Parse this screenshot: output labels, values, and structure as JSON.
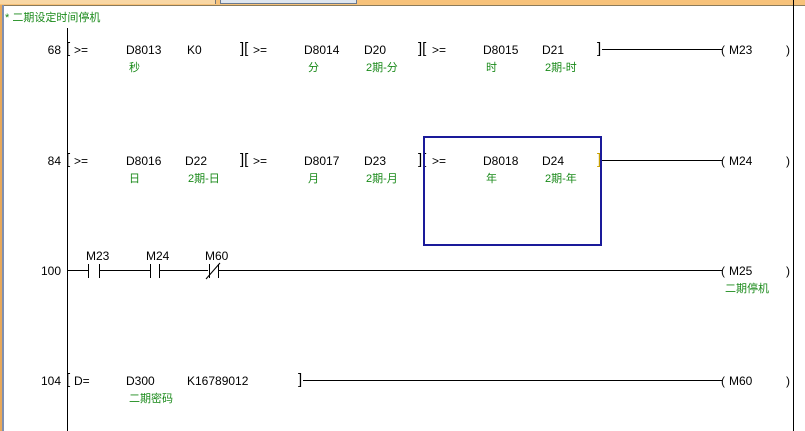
{
  "statement_comment": "* 二期设定时间停机",
  "rungs": [
    {
      "step": "68",
      "compares": [
        {
          "op": ">=",
          "s1": "D8013",
          "s1_comment": "秒",
          "s2": "K0",
          "s2_comment": ""
        },
        {
          "op": ">=",
          "s1": "D8014",
          "s1_comment": "分",
          "s2": "D20",
          "s2_comment": "2期-分"
        },
        {
          "op": ">=",
          "s1": "D8015",
          "s1_comment": "时",
          "s2": "D21",
          "s2_comment": "2期-时"
        }
      ],
      "coil": "M23",
      "coil_comment": ""
    },
    {
      "step": "84",
      "compares": [
        {
          "op": ">=",
          "s1": "D8016",
          "s1_comment": "日",
          "s2": "D22",
          "s2_comment": "2期-日"
        },
        {
          "op": ">=",
          "s1": "D8017",
          "s1_comment": "月",
          "s2": "D23",
          "s2_comment": "2期-月"
        },
        {
          "op": ">=",
          "s1": "D8018",
          "s1_comment": "年",
          "s2": "D24",
          "s2_comment": "2期-年"
        }
      ],
      "coil": "M24",
      "coil_comment": ""
    },
    {
      "step": "100",
      "contacts": [
        {
          "device": "M23",
          "type": "NO"
        },
        {
          "device": "M24",
          "type": "NO"
        },
        {
          "device": "M60",
          "type": "NC"
        }
      ],
      "coil": "M25",
      "coil_comment": "二期停机"
    },
    {
      "step": "104",
      "compares": [
        {
          "op": "D=",
          "s1": "D300",
          "s1_comment": "二期密码",
          "s2": "K16789012",
          "s2_comment": ""
        }
      ],
      "coil": "M60",
      "coil_comment": ""
    }
  ],
  "colors": {
    "comment": "#1a8a1a",
    "cursor": "#1a1a9a"
  }
}
